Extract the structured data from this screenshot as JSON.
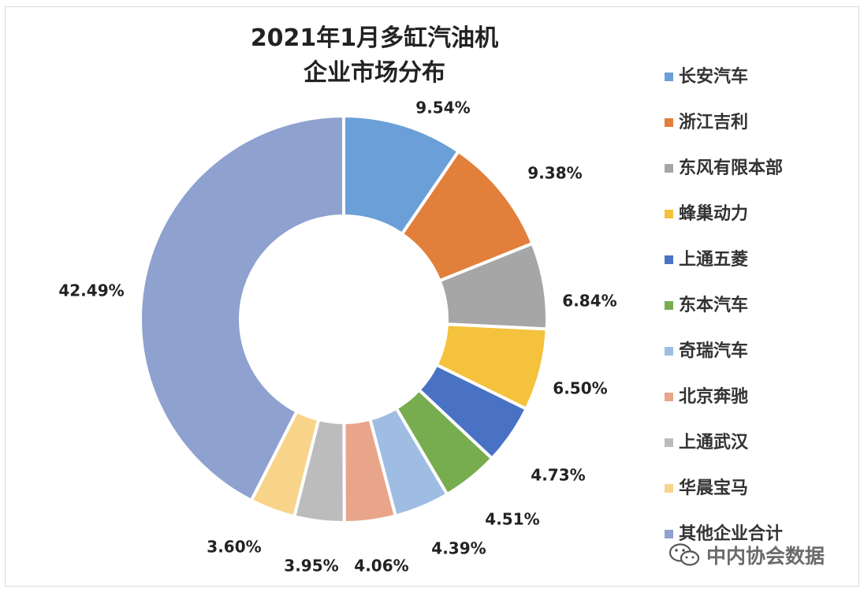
{
  "chart_data": {
    "type": "pie",
    "variant": "donut",
    "title_lines": [
      "2021年1月多缸汽油机",
      "企业市场分布"
    ],
    "categories": [
      "长安汽车",
      "浙江吉利",
      "东风有限本部",
      "蜂巢动力",
      "上通五菱",
      "东本汽车",
      "奇瑞汽车",
      "北京奔驰",
      "上通武汉",
      "华晨宝马",
      "其他企业合计"
    ],
    "values": [
      9.54,
      9.38,
      6.84,
      6.5,
      4.73,
      4.51,
      4.39,
      4.06,
      3.95,
      3.6,
      42.49
    ],
    "labels": [
      "9.54%",
      "9.38%",
      "6.84%",
      "6.50%",
      "4.73%",
      "4.51%",
      "4.39%",
      "4.06%",
      "3.95%",
      "3.60%",
      "42.49%"
    ],
    "colors": [
      "#6a9fd7",
      "#e27f3b",
      "#a6a6a6",
      "#f4c23c",
      "#4a72c4",
      "#77ad4f",
      "#9fbde3",
      "#e8a58a",
      "#bcbcbc",
      "#f8d48a",
      "#8ea1cf"
    ],
    "legend_position": "right"
  },
  "watermark": {
    "text": "中内协会数据",
    "icon": "wechat-icon"
  }
}
